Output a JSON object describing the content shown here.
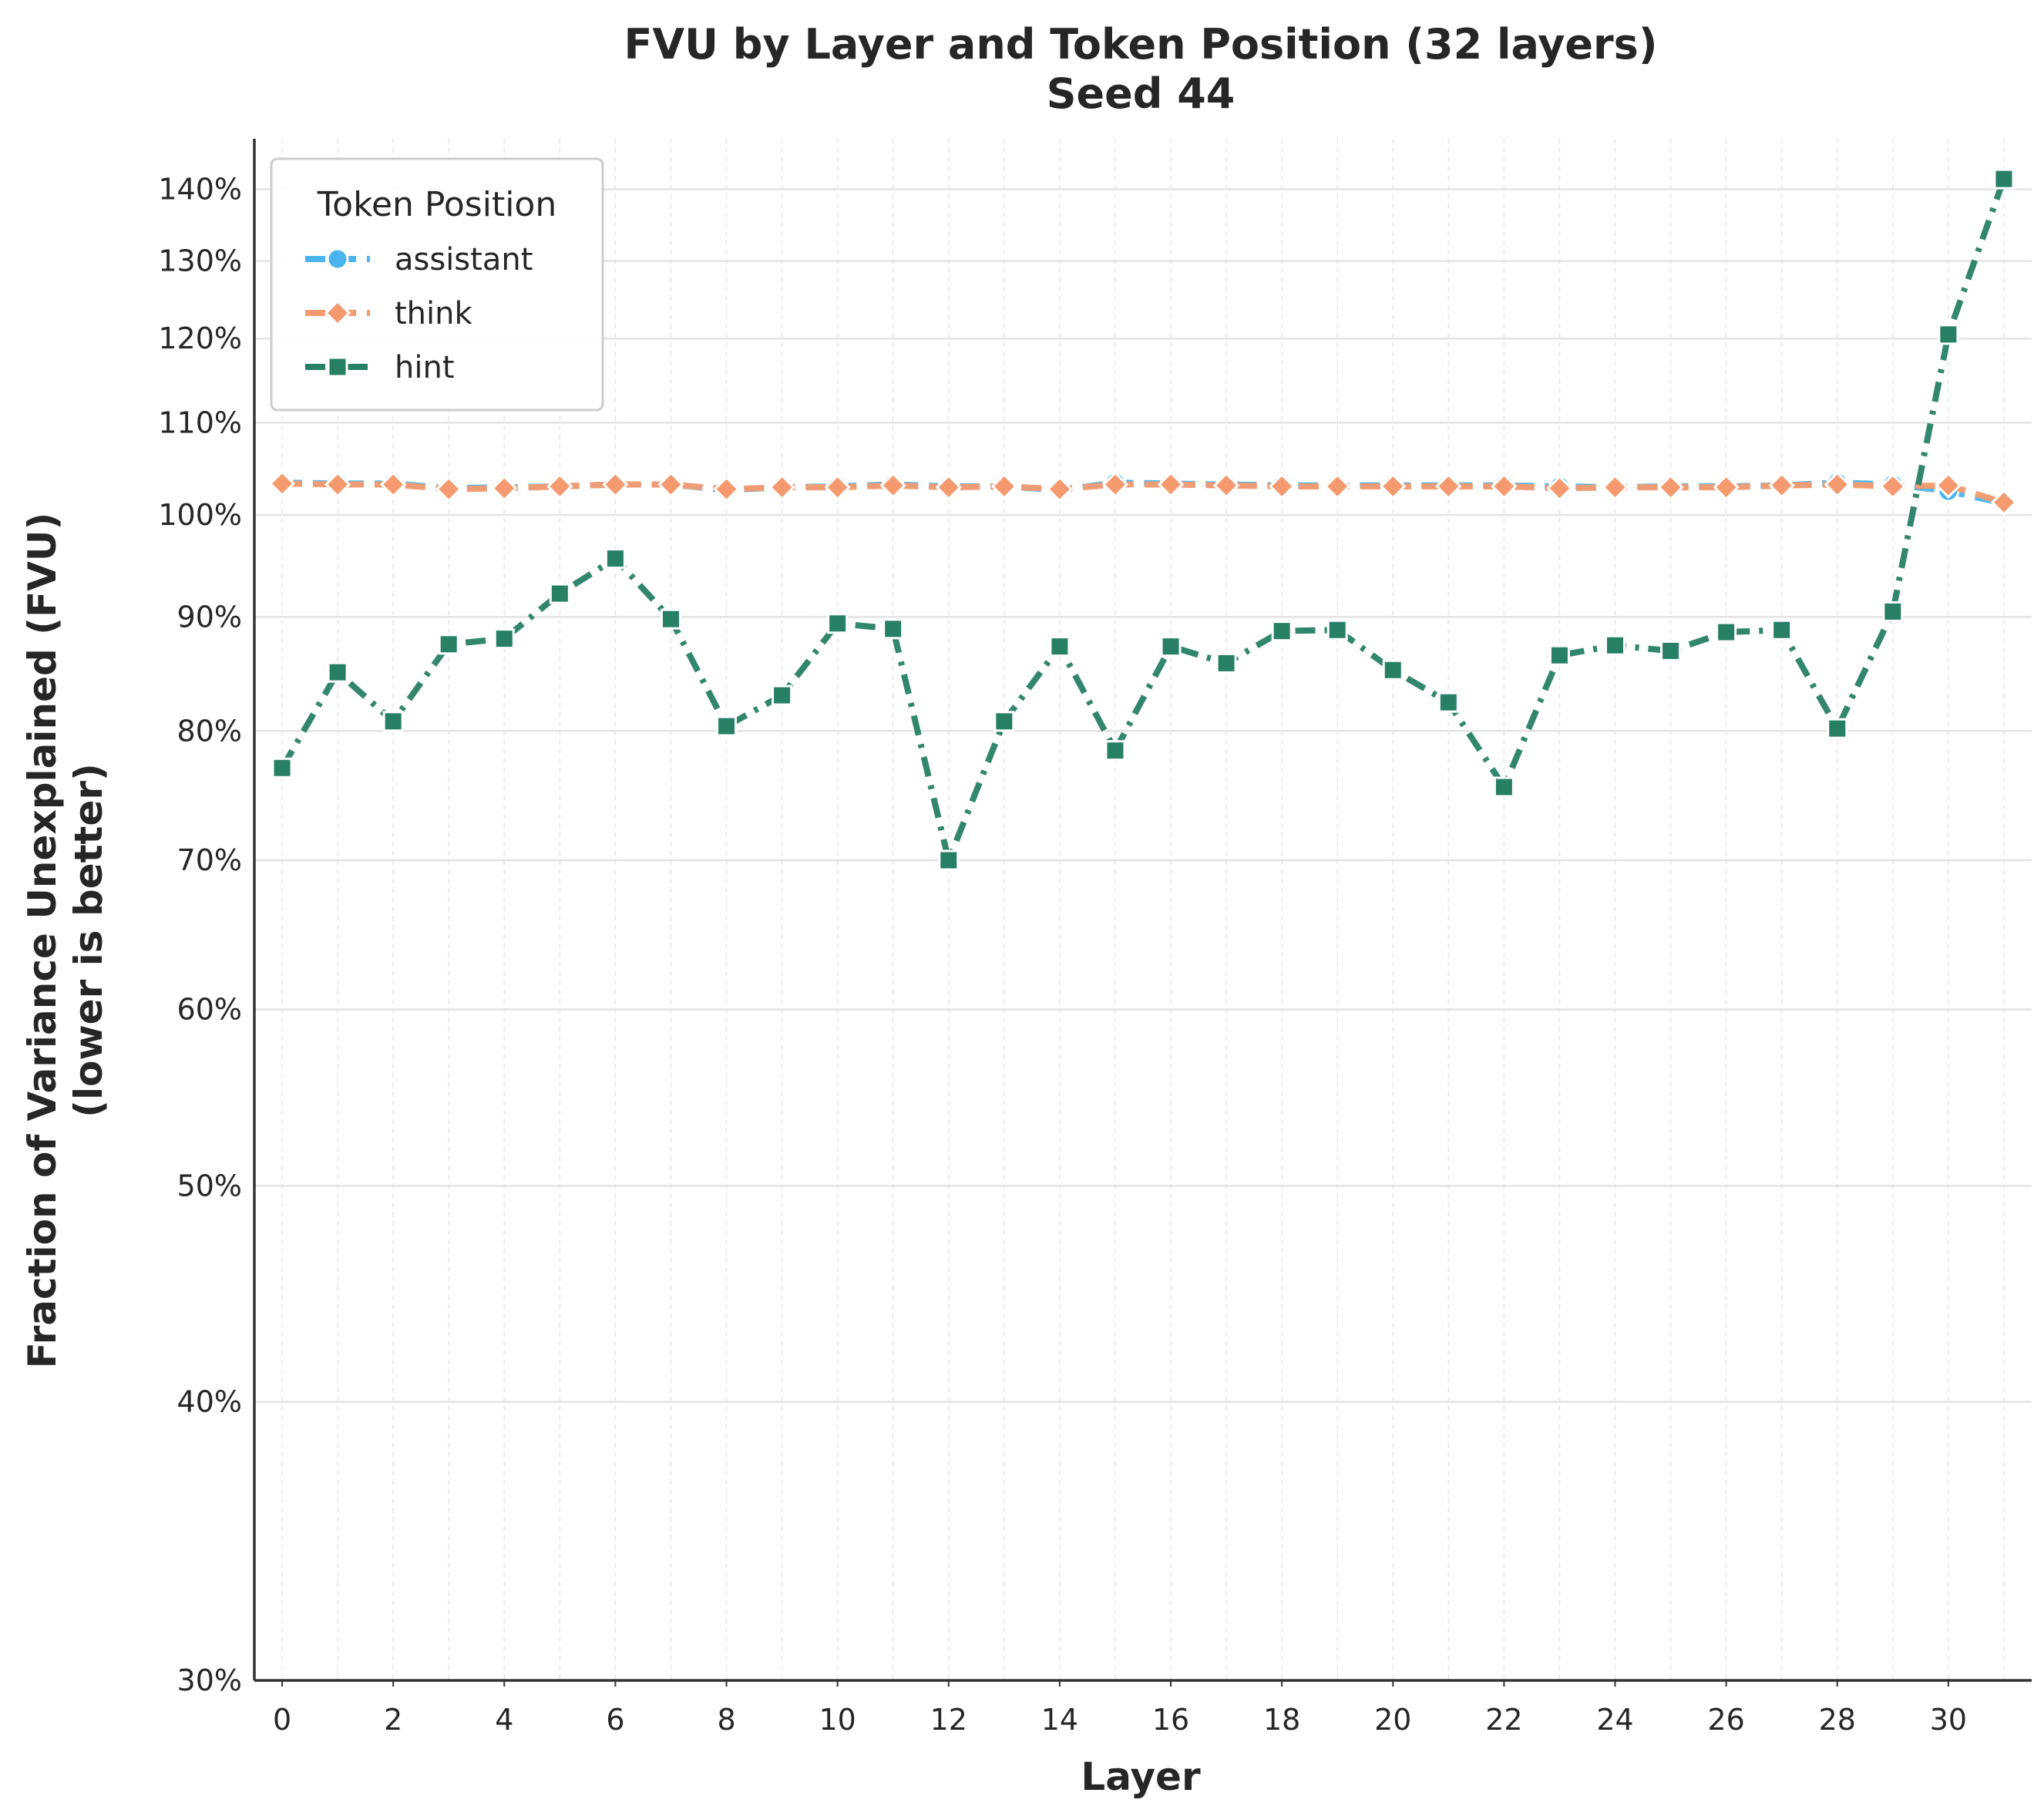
{
  "chart_data": {
    "type": "line",
    "title": "FVU by Layer and Token Position (32 layers)",
    "subtitle": "Seed 44",
    "xlabel": "Layer",
    "ylabel_line1": "Fraction of Variance Unexplained (FVU)",
    "ylabel_line2": "(lower is better)",
    "xlim": [
      -0.5,
      31.5
    ],
    "ylim": [
      0.3,
      1.475
    ],
    "y_log_scale": true,
    "xticks": [
      0,
      2,
      4,
      6,
      8,
      10,
      12,
      14,
      16,
      18,
      20,
      22,
      24,
      26,
      28,
      30
    ],
    "xtick_labels": [
      "0",
      "2",
      "4",
      "6",
      "8",
      "10",
      "12",
      "14",
      "16",
      "18",
      "20",
      "22",
      "24",
      "26",
      "28",
      "30"
    ],
    "yticks": [
      0.3,
      0.4,
      0.5,
      0.6,
      0.7,
      0.8,
      0.9,
      1.0,
      1.1,
      1.2,
      1.3,
      1.4
    ],
    "ytick_labels": [
      "30%",
      "40%",
      "50%",
      "60%",
      "70%",
      "80%",
      "90%",
      "100%",
      "110%",
      "120%",
      "130%",
      "140%"
    ],
    "grid": true,
    "legend_title": "Token Position",
    "legend_position": "top-left",
    "x": [
      0,
      1,
      2,
      3,
      4,
      5,
      6,
      7,
      8,
      9,
      10,
      11,
      12,
      13,
      14,
      15,
      16,
      17,
      18,
      19,
      20,
      21,
      22,
      23,
      24,
      25,
      26,
      27,
      28,
      29,
      30,
      31
    ],
    "series": [
      {
        "name": "assistant",
        "color": "#4ab4ee",
        "marker": "circle",
        "linestyle": "dashed",
        "values": [
          1.034,
          1.033,
          1.033,
          1.028,
          1.029,
          1.03,
          1.032,
          1.032,
          1.026,
          1.029,
          1.03,
          1.032,
          1.03,
          1.03,
          1.026,
          1.034,
          1.033,
          1.032,
          1.031,
          1.031,
          1.031,
          1.031,
          1.031,
          1.03,
          1.029,
          1.03,
          1.03,
          1.031,
          1.034,
          1.032,
          1.025,
          1.012
        ]
      },
      {
        "name": "think",
        "color": "#f59a6e",
        "marker": "diamond",
        "linestyle": "dashed",
        "values": [
          1.033,
          1.032,
          1.032,
          1.027,
          1.028,
          1.03,
          1.032,
          1.032,
          1.027,
          1.029,
          1.029,
          1.031,
          1.029,
          1.03,
          1.027,
          1.032,
          1.032,
          1.031,
          1.03,
          1.03,
          1.03,
          1.03,
          1.03,
          1.028,
          1.029,
          1.029,
          1.029,
          1.031,
          1.032,
          1.03,
          1.031,
          1.013
        ]
      },
      {
        "name": "hint",
        "color": "#277f66",
        "marker": "square",
        "linestyle": "dashdot",
        "values": [
          0.77,
          0.85,
          0.808,
          0.875,
          0.88,
          0.922,
          0.956,
          0.898,
          0.804,
          0.83,
          0.894,
          0.889,
          0.7,
          0.808,
          0.873,
          0.784,
          0.873,
          0.858,
          0.887,
          0.888,
          0.852,
          0.824,
          0.755,
          0.865,
          0.874,
          0.869,
          0.886,
          0.888,
          0.802,
          0.905,
          1.205,
          1.415
        ]
      }
    ]
  }
}
